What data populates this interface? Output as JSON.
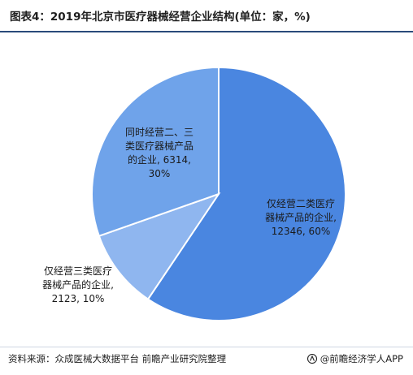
{
  "title": "图表4：2019年北京市医疗器械经营企业结构(单位：家，%)",
  "chart_data": {
    "type": "pie",
    "title": "图表4：2019年北京市医疗器械经营企业结构(单位：家，%)",
    "slices": [
      {
        "label_lines": [
          "仅经营二类医疗",
          "器械产品的企业,",
          "12346, 60%"
        ],
        "name": "仅经营二类医疗器械产品的企业",
        "value": 12346,
        "percent": 60,
        "color": "#4a86e0"
      },
      {
        "label_lines": [
          "仅经营三类医疗",
          "器械产品的企业,",
          "2123, 10%"
        ],
        "name": "仅经营三类医疗器械产品的企业",
        "value": 2123,
        "percent": 10,
        "color": "#8fb6ef"
      },
      {
        "label_lines": [
          "同时经营二、三",
          "类医疗器械产品",
          "的企业, 6314,",
          "30%"
        ],
        "name": "同时经营二、三类医疗器械产品的企业",
        "value": 6314,
        "percent": 30,
        "color": "#6fa3ea"
      }
    ]
  },
  "footer": {
    "source": "资料来源：众成医械大数据平台 前瞻产业研究院整理",
    "brand": "@前瞻经济学人APP"
  },
  "colors": {
    "divider": "#2a4a7a",
    "stroke": "#ffffff"
  }
}
